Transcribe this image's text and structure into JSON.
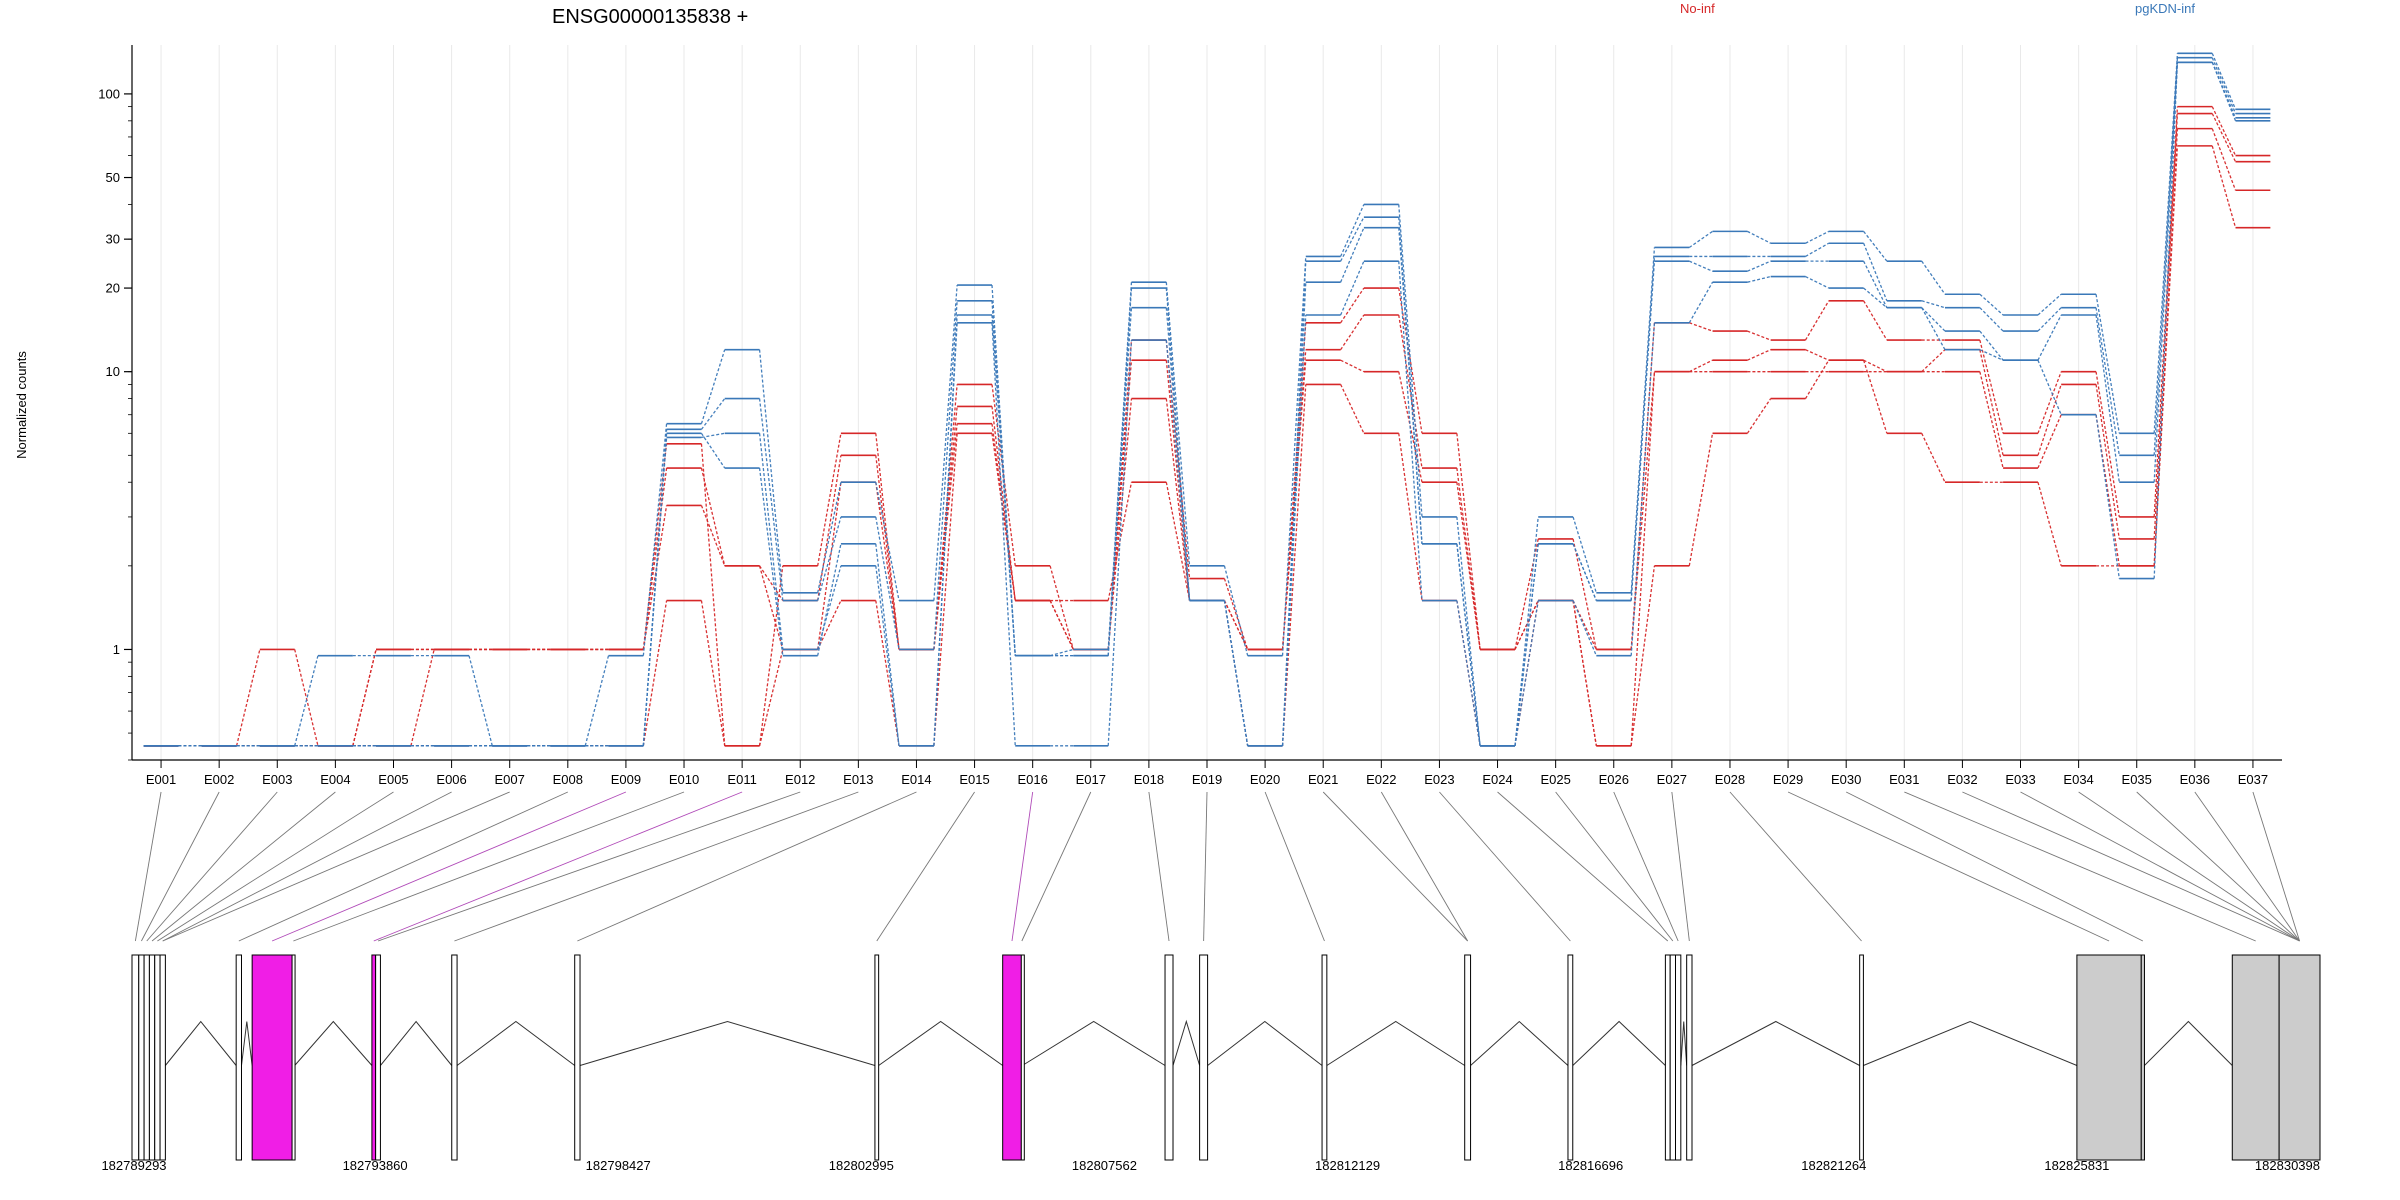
{
  "chart_data": {
    "type": "line",
    "title": "ENSG00000135838 +",
    "ylabel": "Normalized counts",
    "y_scale": "log",
    "y_ticks": [
      1,
      10,
      20,
      30,
      50,
      100
    ],
    "ylim": [
      0.4,
      150
    ],
    "grid": "vertical only",
    "legend": [
      {
        "name": "No-inf",
        "color": "#d62728",
        "placement": "top-center"
      },
      {
        "name": "pgKDN-inf",
        "color": "#3a78b8",
        "placement": "top-right"
      }
    ],
    "categories": [
      "E001",
      "E002",
      "E003",
      "E004",
      "E005",
      "E006",
      "E007",
      "E008",
      "E009",
      "E010",
      "E011",
      "E012",
      "E013",
      "E014",
      "E015",
      "E016",
      "E017",
      "E018",
      "E019",
      "E020",
      "E021",
      "E022",
      "E023",
      "E024",
      "E025",
      "E026",
      "E027",
      "E028",
      "E029",
      "E030",
      "E031",
      "E032",
      "E033",
      "E034",
      "E035",
      "E036",
      "E037"
    ],
    "series": [
      {
        "group": "No-inf",
        "color": "#d62728",
        "values": [
          0.45,
          0.45,
          1,
          0.45,
          1,
          1,
          1,
          1,
          1,
          5.5,
          0.45,
          2,
          6,
          1,
          9,
          2,
          1,
          13,
          1.8,
          1,
          15,
          20,
          6,
          1,
          2.5,
          1,
          15,
          14,
          13,
          18,
          13,
          13,
          6,
          10,
          3,
          90,
          60
        ]
      },
      {
        "group": "No-inf",
        "color": "#d62728",
        "values": [
          0.45,
          0.45,
          0.45,
          0.45,
          1,
          1,
          1,
          1,
          1,
          4.5,
          2,
          1.5,
          5,
          1,
          7.5,
          1.5,
          1,
          11,
          1.5,
          1,
          12,
          16,
          4.5,
          1,
          1.5,
          0.45,
          10,
          11,
          12,
          11,
          10,
          12,
          5,
          9,
          2.5,
          85,
          57
        ]
      },
      {
        "group": "No-inf",
        "color": "#d62728",
        "values": [
          0.45,
          0.45,
          0.45,
          0.45,
          0.45,
          1,
          1,
          1,
          1,
          3.3,
          2,
          1,
          4,
          1,
          6.5,
          1.5,
          1,
          8,
          1.5,
          1,
          11,
          10,
          4,
          1,
          1.5,
          1,
          10,
          10,
          10,
          10,
          10,
          10,
          4.5,
          7,
          2,
          75,
          45
        ]
      },
      {
        "group": "No-inf",
        "color": "#d62728",
        "values": [
          0.45,
          0.45,
          0.45,
          0.45,
          0.45,
          0.45,
          0.45,
          0.45,
          0.45,
          1.5,
          0.45,
          1,
          1.5,
          0.45,
          6,
          1.5,
          1.5,
          4,
          1.5,
          0.45,
          9,
          6,
          1.5,
          0.45,
          1.5,
          0.45,
          2,
          6,
          8,
          11,
          6,
          4,
          4,
          2,
          2,
          65,
          33
        ]
      },
      {
        "group": "pgKDN-inf",
        "color": "#3a78b8",
        "values": [
          0.45,
          0.45,
          0.45,
          0.95,
          0.95,
          0.95,
          0.45,
          0.45,
          0.95,
          6.5,
          12,
          1.6,
          4,
          1.5,
          20.5,
          0.95,
          1,
          21,
          2,
          0.95,
          26,
          40,
          3,
          0.45,
          3,
          1.6,
          28,
          32,
          29,
          32,
          25,
          19,
          16,
          19,
          6,
          140,
          88
        ]
      },
      {
        "group": "pgKDN-inf",
        "color": "#3a78b8",
        "values": [
          0.45,
          0.45,
          0.45,
          0.45,
          0.45,
          0.45,
          0.45,
          0.45,
          0.45,
          6.2,
          8,
          1.5,
          3,
          1,
          18,
          0.95,
          0.95,
          20,
          1.5,
          0.45,
          25,
          36,
          2.4,
          0.45,
          2.4,
          1.5,
          26,
          26,
          26,
          29,
          18,
          17,
          14,
          17,
          5,
          135,
          85
        ]
      },
      {
        "group": "pgKDN-inf",
        "color": "#3a78b8",
        "values": [
          0.45,
          0.45,
          0.45,
          0.45,
          0.45,
          0.45,
          0.45,
          0.45,
          0.45,
          6,
          4.5,
          0.95,
          2.4,
          0.45,
          16,
          0.95,
          0.95,
          17,
          1.5,
          0.45,
          21,
          33,
          2.4,
          0.45,
          2.4,
          1.5,
          25,
          23,
          25,
          25,
          17,
          14,
          11,
          16,
          4,
          130,
          82
        ]
      },
      {
        "group": "pgKDN-inf",
        "color": "#3a78b8",
        "values": [
          0.45,
          0.45,
          0.45,
          0.45,
          0.45,
          0.45,
          0.45,
          0.45,
          0.45,
          5.8,
          6,
          1,
          2,
          0.45,
          15,
          0.45,
          0.45,
          13,
          1.5,
          0.45,
          16,
          25,
          1.5,
          0.45,
          1.5,
          0.95,
          15,
          21,
          22,
          20,
          17,
          12,
          11,
          7,
          1.8,
          130,
          80
        ]
      }
    ],
    "gene_model": {
      "coordinate_labels": [
        "182789293",
        "182793860",
        "182798427",
        "182802995",
        "182807562",
        "182812129",
        "182816696",
        "182821264",
        "182825831",
        "182830398"
      ],
      "genomic_start": 182789293,
      "genomic_end": 182830398,
      "exons": [
        {
          "id": "E001",
          "start": 182789293,
          "end": 182789420,
          "type": "normal"
        },
        {
          "id": "E002",
          "start": 182789420,
          "end": 182789520,
          "type": "normal"
        },
        {
          "id": "E003",
          "start": 182789520,
          "end": 182789620,
          "type": "normal"
        },
        {
          "id": "E004",
          "start": 182789620,
          "end": 182789720,
          "type": "normal"
        },
        {
          "id": "E005",
          "start": 182789720,
          "end": 182789820,
          "type": "normal"
        },
        {
          "id": "E006",
          "start": 182789820,
          "end": 182789920,
          "type": "normal"
        },
        {
          "id": "E007",
          "start": 182791250,
          "end": 182791350,
          "type": "normal"
        },
        {
          "id": "E008",
          "start": 182791550,
          "end": 182792300,
          "type": "highlight"
        },
        {
          "id": "E009",
          "start": 182792300,
          "end": 182792350,
          "type": "normal"
        },
        {
          "id": "E010",
          "start": 182793800,
          "end": 182793870,
          "type": "highlight"
        },
        {
          "id": "E011",
          "start": 182793870,
          "end": 182793960,
          "type": "normal"
        },
        {
          "id": "E012",
          "start": 182795300,
          "end": 182795400,
          "type": "normal"
        },
        {
          "id": "E013",
          "start": 182797610,
          "end": 182797710,
          "type": "normal"
        },
        {
          "id": "E014",
          "start": 182803250,
          "end": 182803320,
          "type": "normal"
        },
        {
          "id": "E015",
          "start": 182805650,
          "end": 182806000,
          "type": "highlight"
        },
        {
          "id": "E016",
          "start": 182806000,
          "end": 182806020,
          "type": "normal"
        },
        {
          "id": "E017",
          "start": 182808700,
          "end": 182808850,
          "type": "normal"
        },
        {
          "id": "E018",
          "start": 182809350,
          "end": 182809500,
          "type": "normal"
        },
        {
          "id": "E019",
          "start": 182811650,
          "end": 182811740,
          "type": "normal"
        },
        {
          "id": "E020",
          "start": 182814330,
          "end": 182814440,
          "type": "normal"
        },
        {
          "id": "E021",
          "start": 182816270,
          "end": 182816360,
          "type": "normal"
        },
        {
          "id": "E022",
          "start": 182818100,
          "end": 182818190,
          "type": "normal"
        },
        {
          "id": "E023",
          "start": 182818190,
          "end": 182818290,
          "type": "normal"
        },
        {
          "id": "E024",
          "start": 182818290,
          "end": 182818390,
          "type": "normal"
        },
        {
          "id": "E025",
          "start": 182818500,
          "end": 182818600,
          "type": "normal"
        },
        {
          "id": "E026",
          "start": 182821750,
          "end": 182821820,
          "type": "normal"
        },
        {
          "id": "E027",
          "start": 182825831,
          "end": 182827040,
          "type": "utr"
        },
        {
          "id": "E028",
          "start": 182827040,
          "end": 182827100,
          "type": "utr"
        },
        {
          "id": "E029",
          "start": 182828750,
          "end": 182829630,
          "type": "utr"
        },
        {
          "id": "E030",
          "start": 182829630,
          "end": 182830398,
          "type": "utr"
        }
      ],
      "connector_map": [
        1,
        2,
        3,
        4,
        5,
        6,
        6,
        7,
        8,
        9,
        10,
        11,
        12,
        13,
        14,
        15,
        16,
        17,
        18,
        19,
        20,
        20,
        21,
        22,
        23,
        24,
        25,
        26,
        27,
        28,
        29,
        30,
        31,
        32,
        33,
        34,
        35
      ]
    }
  }
}
